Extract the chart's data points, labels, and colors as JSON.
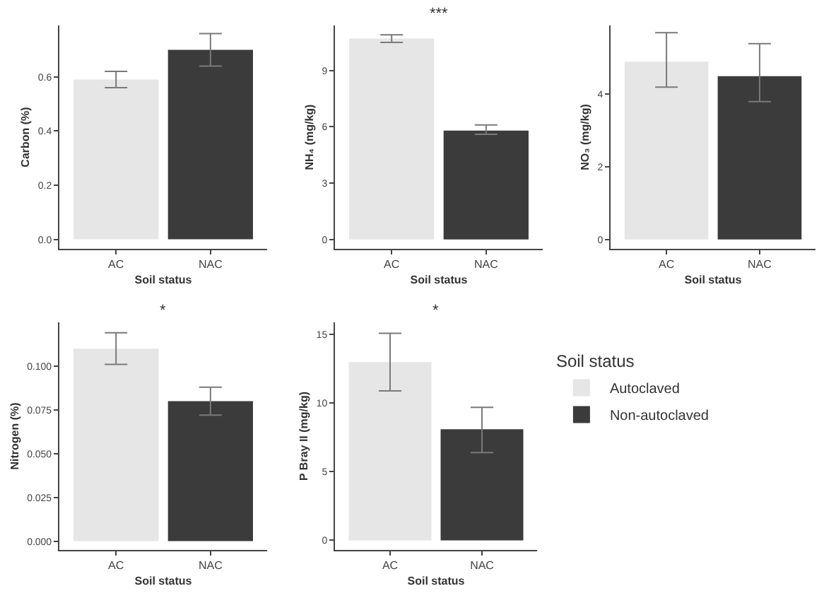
{
  "chart_data": [
    {
      "type": "bar",
      "xlabel": "Soil status",
      "ylabel": "Carbon (%)",
      "categories": [
        "AC",
        "NAC"
      ],
      "values": [
        0.59,
        0.7
      ],
      "colors": [
        "#e6e6e6",
        "#3b3b3b"
      ],
      "errors": [
        [
          0.56,
          0.62
        ],
        [
          0.64,
          0.76
        ]
      ],
      "ylim": [
        -0.035,
        0.79
      ],
      "yticks": [
        {
          "value": 0,
          "label": "0.0"
        },
        {
          "value": 0.2,
          "label": "0.2"
        },
        {
          "value": 0.4,
          "label": "0.4"
        },
        {
          "value": 0.6,
          "label": "0.6"
        }
      ]
    },
    {
      "type": "bar",
      "xlabel": "Soil status",
      "ylabel": "NH₄ (mg/kg)",
      "annotations": [
        "***"
      ],
      "categories": [
        "AC",
        "NAC"
      ],
      "values": [
        10.7,
        5.8
      ],
      "colors": [
        "#e6e6e6",
        "#3b3b3b"
      ],
      "errors": [
        [
          10.5,
          10.9
        ],
        [
          5.6,
          6.1
        ]
      ],
      "ylim": [
        -0.5,
        11.4
      ],
      "yticks": [
        0,
        3,
        6,
        9
      ]
    },
    {
      "type": "bar",
      "xlabel": "Soil status",
      "ylabel": "NO₃ (mg/kg)",
      "categories": [
        "AC",
        "NAC"
      ],
      "values": [
        4.9,
        4.5
      ],
      "colors": [
        "#e6e6e6",
        "#3b3b3b"
      ],
      "errors": [
        [
          4.2,
          5.7
        ],
        [
          3.8,
          5.4
        ]
      ],
      "ylim": [
        -0.26,
        5.9
      ],
      "yticks": [
        0,
        2,
        4
      ]
    },
    {
      "type": "bar",
      "xlabel": "Soil status",
      "ylabel": "Nitrogen (%)",
      "annotations": [
        "*"
      ],
      "categories": [
        "AC",
        "NAC"
      ],
      "values": [
        0.11,
        0.08
      ],
      "colors": [
        "#e6e6e6",
        "#3b3b3b"
      ],
      "errors": [
        [
          0.101,
          0.119
        ],
        [
          0.072,
          0.088
        ]
      ],
      "ylim": [
        -0.005,
        0.125
      ],
      "yticks": [
        {
          "value": 0,
          "label": "0.000"
        },
        {
          "value": 0.025,
          "label": "0.025"
        },
        {
          "value": 0.05,
          "label": "0.050"
        },
        {
          "value": 0.075,
          "label": "0.075"
        },
        {
          "value": 0.1,
          "label": "0.100"
        }
      ]
    },
    {
      "type": "bar",
      "xlabel": "Soil status",
      "ylabel": "P Bray II (mg/kg)",
      "annotations": [
        "*"
      ],
      "legend_title": "Soil status",
      "legend": "right",
      "categories": [
        "AC",
        "NAC"
      ],
      "series": [
        {
          "name": "Autoclaved",
          "color": "#e6e6e6",
          "values": [
            13.0,
            null
          ],
          "errors": [
            [
              10.9,
              15.1
            ],
            null
          ]
        },
        {
          "name": "Non-autoclaved",
          "color": "#3b3b3b",
          "values": [
            null,
            8.1
          ],
          "errors": [
            null,
            [
              6.4,
              9.7
            ]
          ]
        }
      ],
      "ylim": [
        -0.7,
        15.9
      ],
      "yticks": [
        0,
        5,
        10,
        15
      ]
    }
  ]
}
